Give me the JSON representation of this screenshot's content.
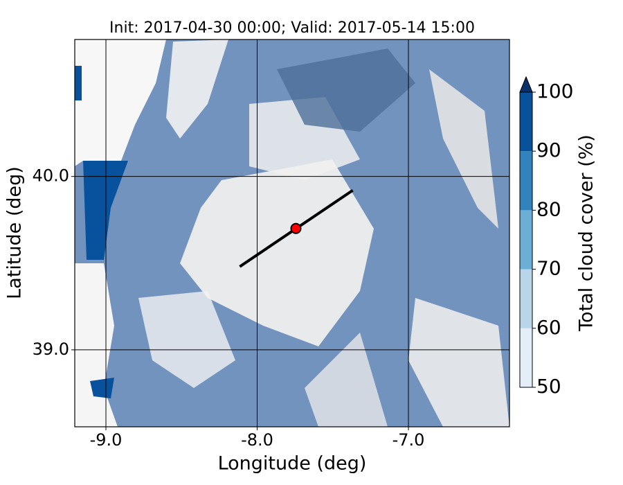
{
  "chart_data": {
    "type": "map",
    "title": "Init: 2017-04-30 00:00; Valid: 2017-05-14 15:00",
    "xlabel": "Longitude (deg)",
    "ylabel": "Latitude (deg)",
    "xlim": [
      -9.206,
      -6.332
    ],
    "ylim": [
      38.556,
      40.79
    ],
    "xticks": [
      {
        "value": -9,
        "label": "-9.0"
      },
      {
        "value": -8,
        "label": "-8.0"
      },
      {
        "value": -7,
        "label": "-7.0"
      }
    ],
    "yticks": [
      {
        "value": 39,
        "label": "39.0"
      },
      {
        "value": 40,
        "label": "40.0"
      }
    ],
    "grid": true,
    "cross_section": {
      "lon": [
        -8.115,
        -7.368
      ],
      "lat": [
        39.48,
        39.92
      ],
      "color": "#000000"
    },
    "point": {
      "lon": -7.744,
      "lat": 39.7,
      "color": "#ff0000"
    },
    "colorbar": {
      "label": "Total cloud cover (%)",
      "lim": [
        50,
        100
      ],
      "ticks": [
        50,
        60,
        70,
        80,
        90,
        100
      ],
      "colors": [
        "#e3eef8",
        "#b9d5ea",
        "#6baed6",
        "#3182bd",
        "#08519c"
      ],
      "extend_color": "#08306b"
    }
  }
}
